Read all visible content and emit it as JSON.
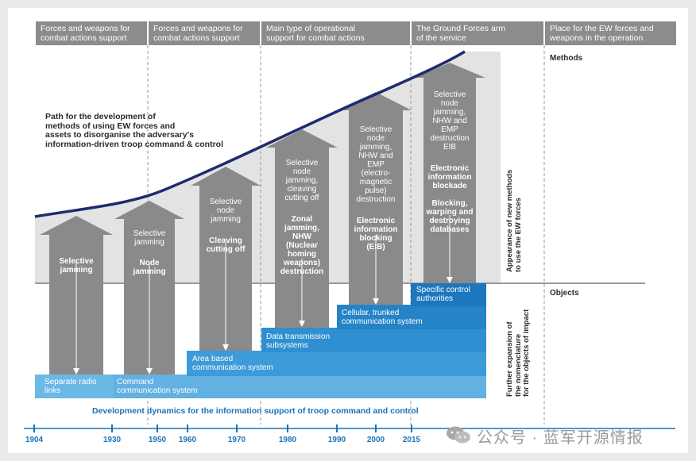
{
  "headers": [
    "Forces and weapons for\ncombat actions support",
    "Forces and weapons for\ncombat actions support",
    "Main type of operational\nsupport for combat actions",
    "The Ground Forces arm\nof the service",
    "Place for the EW forces and\nweapons in the operation"
  ],
  "path_label": "Path for the development of\nmethods of using EW forces and\nassets to disorganise the adversary's\ninformation-driven troop command & control",
  "side_labels": {
    "methods": "Methods",
    "objects": "Objects"
  },
  "vertical_labels": {
    "methods": "Appearance of new methods\nto use the EW forces",
    "objects": "Further expansion of\nthe nomenclature\nfor the objects of impact"
  },
  "arrows": [
    {
      "light": "",
      "bold": "Selective\njamming"
    },
    {
      "light": "Selective\njamming",
      "bold": "Node\njamming"
    },
    {
      "light": "Selective\nnode\njamming",
      "bold": "Cleaving\ncutting off"
    },
    {
      "light": "Selective\nnode\njamming,\ncleaving\ncutting off",
      "bold": "Zonal\njamming,\nNHW\n(Nuclear\nhoming\nweapons)\ndestruction"
    },
    {
      "light": "Selective\nnode\njamming,\nNHW and\nEMP\n(electro-\nmagnetic\npulse)\ndestruction",
      "bold": "Electronic\ninformation\nblocking\n(EIB)"
    },
    {
      "light": "Selective\nnode\njamming,\nNHW and\nEMP\ndestruction\nEIB",
      "bold": "Electronic\ninformation\nblockade\n\nBlocking,\nwarping and\ndestroying\ndatabases"
    }
  ],
  "objects": [
    "Separate radio\nlinks",
    "Command\ncommunication  system",
    "Area based\ncommunication  system",
    "Data transmission\nsubsystems",
    "Cellular, trunked\ncommunication system",
    "Specific control\nauthorities"
  ],
  "timeline_title": "Development dynamics for the information support of troop command and control",
  "years": [
    "1904",
    "1930",
    "1950",
    "1960",
    "1970",
    "1980",
    "1990",
    "2000",
    "2015"
  ],
  "watermark": "公众号 · 蓝军开源情报",
  "colors": {
    "header_bg": "#8c8c8c",
    "arrow": "#8a8a8a",
    "curve": "#1f2b6e",
    "blue": "#1a73b8",
    "blue_light": "#5dade2"
  }
}
